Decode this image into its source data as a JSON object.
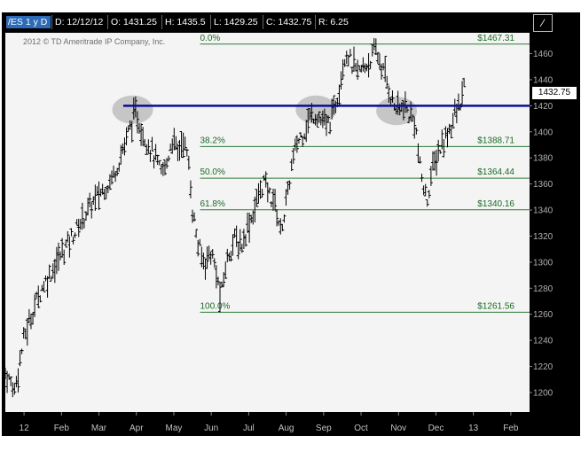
{
  "header": {
    "symbol": "/ES 1 y D",
    "date": "D: 12/12/12",
    "open": "O: 1431.25",
    "high": "H: 1435.5",
    "low": "L: 1429.25",
    "close": "C: 1432.75",
    "range": "R: 6.25",
    "drawing_tool_icon": "drawing-tool-icon"
  },
  "watermark": "2012 © TD Ameritrade IP Company, Inc.",
  "last_price_label": "1432.75",
  "colors": {
    "background": "#000000",
    "plot_bg": "#f4f4f4",
    "bars": "#000000",
    "fib_lines": "#2b7a36",
    "resistance_line": "#0b0b9a",
    "highlight_ellipse": "#bdbdbd",
    "symbol_bg": "#2d6bb8"
  },
  "chart_data": {
    "type": "ohlc-bar",
    "title": "",
    "xlabel": "",
    "ylabel": "",
    "ylim": [
      1185,
      1476
    ],
    "xlim": [
      0,
      14.0
    ],
    "y_ticks": [
      1200,
      1220,
      1240,
      1260,
      1280,
      1300,
      1320,
      1340,
      1360,
      1380,
      1400,
      1420,
      1440,
      1460
    ],
    "x_ticks": [
      {
        "label": "12",
        "x": 0.5
      },
      {
        "label": "Feb",
        "x": 1.5
      },
      {
        "label": "Mar",
        "x": 2.5
      },
      {
        "label": "Apr",
        "x": 3.5
      },
      {
        "label": "May",
        "x": 4.5
      },
      {
        "label": "Jun",
        "x": 5.5
      },
      {
        "label": "Jul",
        "x": 6.5
      },
      {
        "label": "Aug",
        "x": 7.5
      },
      {
        "label": "Sep",
        "x": 8.5
      },
      {
        "label": "Oct",
        "x": 9.5
      },
      {
        "label": "Nov",
        "x": 10.5
      },
      {
        "label": "Dec",
        "x": 11.5
      },
      {
        "label": "13",
        "x": 12.5
      },
      {
        "label": "Feb",
        "x": 13.5
      }
    ],
    "price_path": [
      [
        0.0,
        1215
      ],
      [
        0.25,
        1202
      ],
      [
        0.5,
        1242
      ],
      [
        0.8,
        1268
      ],
      [
        1.0,
        1282
      ],
      [
        1.3,
        1296
      ],
      [
        1.6,
        1312
      ],
      [
        1.9,
        1325
      ],
      [
        2.2,
        1340
      ],
      [
        2.5,
        1352
      ],
      [
        2.8,
        1362
      ],
      [
        3.0,
        1375
      ],
      [
        3.2,
        1392
      ],
      [
        3.35,
        1405
      ],
      [
        3.5,
        1414
      ],
      [
        3.65,
        1400
      ],
      [
        3.8,
        1392
      ],
      [
        4.0,
        1380
      ],
      [
        4.15,
        1368
      ],
      [
        4.3,
        1374
      ],
      [
        4.45,
        1395
      ],
      [
        4.6,
        1384
      ],
      [
        4.75,
        1395
      ],
      [
        4.9,
        1375
      ],
      [
        5.0,
        1340
      ],
      [
        5.15,
        1312
      ],
      [
        5.3,
        1300
      ],
      [
        5.5,
        1308
      ],
      [
        5.65,
        1290
      ],
      [
        5.75,
        1271
      ],
      [
        5.9,
        1300
      ],
      [
        6.1,
        1318
      ],
      [
        6.3,
        1312
      ],
      [
        6.5,
        1330
      ],
      [
        6.6,
        1336
      ],
      [
        6.75,
        1350
      ],
      [
        6.9,
        1362
      ],
      [
        7.05,
        1352
      ],
      [
        7.2,
        1346
      ],
      [
        7.35,
        1324
      ],
      [
        7.5,
        1344
      ],
      [
        7.65,
        1374
      ],
      [
        7.8,
        1392
      ],
      [
        8.0,
        1402
      ],
      [
        8.15,
        1412
      ],
      [
        8.3,
        1414
      ],
      [
        8.45,
        1408
      ],
      [
        8.6,
        1404
      ],
      [
        8.75,
        1414
      ],
      [
        8.9,
        1432
      ],
      [
        9.0,
        1450
      ],
      [
        9.1,
        1462
      ],
      [
        9.25,
        1452
      ],
      [
        9.4,
        1445
      ],
      [
        9.55,
        1448
      ],
      [
        9.75,
        1456
      ],
      [
        9.9,
        1462
      ],
      [
        10.05,
        1450
      ],
      [
        10.2,
        1438
      ],
      [
        10.35,
        1422
      ],
      [
        10.5,
        1416
      ],
      [
        10.65,
        1420
      ],
      [
        10.8,
        1412
      ],
      [
        10.95,
        1408
      ],
      [
        11.05,
        1376
      ],
      [
        11.15,
        1360
      ],
      [
        11.25,
        1346
      ],
      [
        11.4,
        1370
      ],
      [
        11.55,
        1384
      ],
      [
        11.7,
        1392
      ],
      [
        11.85,
        1402
      ],
      [
        12.0,
        1412
      ],
      [
        12.1,
        1418
      ],
      [
        12.25,
        1432
      ]
    ],
    "fib_levels": [
      {
        "pct": "0.0%",
        "price": 1467.31,
        "price_label": "$1467.31"
      },
      {
        "pct": "38.2%",
        "price": 1388.71,
        "price_label": "$1388.71"
      },
      {
        "pct": "50.0%",
        "price": 1364.44,
        "price_label": "$1364.44"
      },
      {
        "pct": "61.8%",
        "price": 1340.16,
        "price_label": "$1340.16"
      },
      {
        "pct": "100.0%",
        "price": 1261.56,
        "price_label": "$1261.56"
      }
    ],
    "fib_start_x": 5.2,
    "resistance_line": {
      "price": 1420,
      "x_start": 3.15
    },
    "highlight_ellipses": [
      {
        "x": 3.4,
        "price": 1417
      },
      {
        "x": 8.3,
        "price": 1417
      },
      {
        "x": 10.45,
        "price": 1416
      }
    ],
    "last_price": 1432.75
  }
}
